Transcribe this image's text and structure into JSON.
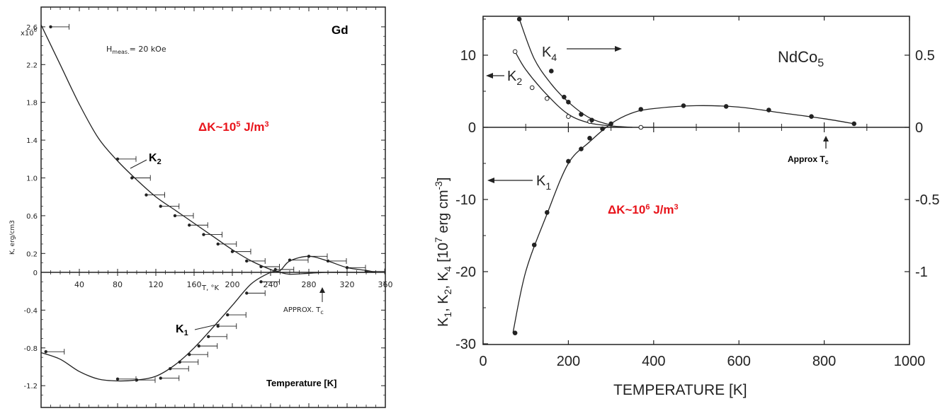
{
  "chart_data": [
    {
      "type": "line",
      "title": "Gd",
      "annotation_field": "H",
      "annotation_field_sub": "meas.",
      "annotation_field_value": "= 20 kOe",
      "annotation_delta_prefix": "ΔK~10",
      "annotation_delta_exp": "5",
      "annotation_delta_unit": " J/m",
      "annotation_delta_unit_exp": "3",
      "approx_tc_label": "APPROX. T",
      "approx_tc_sub": "c",
      "xlabel": "T, °K",
      "xlabel_overlay": "Temperature [K]",
      "ylabel": "K, erg/cm3",
      "x_scale_label": "x10",
      "x_scale_exp": "6",
      "xlim": [
        0,
        360
      ],
      "ylim": [
        -1.35,
        2.7
      ],
      "x_ticks": [
        40,
        80,
        120,
        160,
        200,
        240,
        280,
        320,
        360
      ],
      "x_tick_labels": [
        "40",
        "80",
        "120",
        "160",
        "200",
        "240",
        "280",
        "320",
        "360"
      ],
      "y_ticks": [
        2.6,
        2.2,
        1.8,
        1.4,
        1.0,
        0.6,
        0.2,
        0,
        -0.4,
        -0.8,
        -1.2
      ],
      "y_tick_labels": [
        "2.6",
        "2.2",
        "1.8",
        "1.4",
        "1.0",
        "0.6",
        "0.2",
        "0",
        "-0.4",
        "-0.8",
        "-1.2"
      ],
      "series": [
        {
          "name": "K",
          "name_sub": "2",
          "x": [
            0,
            20,
            40,
            60,
            80,
            100,
            120,
            140,
            160,
            180,
            200,
            220,
            240,
            250,
            260,
            280,
            300,
            320,
            340,
            350
          ],
          "y": [
            2.62,
            2.2,
            1.78,
            1.42,
            1.18,
            0.98,
            0.8,
            0.66,
            0.52,
            0.38,
            0.24,
            0.12,
            0.03,
            0.0,
            -0.02,
            -0.01,
            0.0,
            0.0,
            0.0,
            0.0
          ],
          "points_x": [
            10,
            80,
            95,
            110,
            125,
            140,
            155,
            170,
            185,
            200,
            215,
            230
          ],
          "points_y": [
            2.6,
            1.2,
            1.0,
            0.82,
            0.7,
            0.6,
            0.5,
            0.4,
            0.3,
            0.22,
            0.12,
            0.06
          ]
        },
        {
          "name": "K",
          "name_sub": "1",
          "x": [
            0,
            20,
            40,
            60,
            80,
            100,
            120,
            140,
            160,
            180,
            200,
            220,
            240,
            250,
            260,
            280,
            300,
            320,
            340,
            350
          ],
          "y": [
            -0.85,
            -0.92,
            -1.05,
            -1.13,
            -1.15,
            -1.14,
            -1.1,
            -0.98,
            -0.8,
            -0.58,
            -0.35,
            -0.12,
            0.0,
            0.02,
            0.12,
            0.17,
            0.12,
            0.05,
            0.02,
            0.0
          ],
          "points_x": [
            5,
            80,
            100,
            125,
            135,
            145,
            155,
            165,
            175,
            185,
            195,
            215,
            230,
            245,
            260,
            280,
            300,
            320,
            340
          ],
          "points_y": [
            -0.84,
            -1.13,
            -1.14,
            -1.12,
            -1.02,
            -0.95,
            -0.87,
            -0.78,
            -0.68,
            -0.57,
            -0.45,
            -0.22,
            -0.1,
            0.03,
            0.13,
            0.17,
            0.12,
            0.05,
            0.01
          ]
        }
      ]
    },
    {
      "type": "line",
      "title": "NdCo",
      "title_sub": "5",
      "xlabel": "TEMPERATURE  [K]",
      "ylabel": "K1, K2, K4  [10^7 erg cm^-3]",
      "annotation_delta_prefix": "ΔK~10",
      "annotation_delta_exp": "6",
      "annotation_delta_unit": " J/m",
      "annotation_delta_unit_exp": "3",
      "approx_tc_label": "Approx T",
      "approx_tc_sub": "c",
      "xlim": [
        0,
        1000
      ],
      "ylim": [
        -30,
        15
      ],
      "y2lim": [
        -1.5,
        0.75
      ],
      "x_ticks": [
        0,
        200,
        400,
        600,
        800,
        1000
      ],
      "x_tick_labels": [
        "0",
        "200",
        "400",
        "600",
        "800",
        "1000"
      ],
      "y_ticks": [
        10,
        0,
        -10,
        -20,
        -30
      ],
      "y_tick_labels": [
        "10",
        "0",
        "-10",
        "-20",
        "-30"
      ],
      "y2_ticks": [
        0.5,
        0,
        -0.5,
        -1
      ],
      "y2_tick_labels": [
        "0.5",
        "0",
        "-0.5",
        "-1"
      ],
      "series": [
        {
          "name": "K",
          "name_sub": "1",
          "x": [
            70,
            100,
            150,
            200,
            250,
            300,
            350,
            400,
            500,
            600,
            700,
            800,
            870
          ],
          "y": [
            -28.5,
            -20,
            -12,
            -5,
            -2,
            0.5,
            2,
            2.6,
            3.0,
            2.8,
            2.0,
            1.2,
            0.5
          ],
          "points_x": [
            75,
            120,
            150,
            200,
            230,
            250,
            280,
            300,
            370,
            470,
            570,
            670,
            770,
            870
          ],
          "points_y": [
            -28.5,
            -16.3,
            -11.8,
            -4.7,
            -3,
            -1.5,
            -0.2,
            0.5,
            2.5,
            3,
            2.9,
            2.4,
            1.5,
            0.5
          ]
        },
        {
          "name": "K",
          "name_sub": "2",
          "x": [
            75,
            100,
            150,
            200,
            250,
            300,
            350
          ],
          "y": [
            10.5,
            8,
            4.5,
            1.8,
            0.6,
            0.2,
            0
          ],
          "points_x": [
            75,
            115,
            150,
            200,
            250,
            370
          ],
          "points_y": [
            10.5,
            5.5,
            4.0,
            1.5,
            0.8,
            0
          ]
        },
        {
          "name": "K",
          "name_sub": "4",
          "x": [
            85,
            120,
            160,
            200,
            250,
            300
          ],
          "y": [
            15,
            9.5,
            6,
            3.5,
            1.3,
            0.3
          ],
          "points_x": [
            85,
            160,
            190,
            200,
            230,
            255
          ],
          "points_y": [
            15,
            7.8,
            4.2,
            3.5,
            1.8,
            1.0
          ]
        }
      ]
    }
  ]
}
